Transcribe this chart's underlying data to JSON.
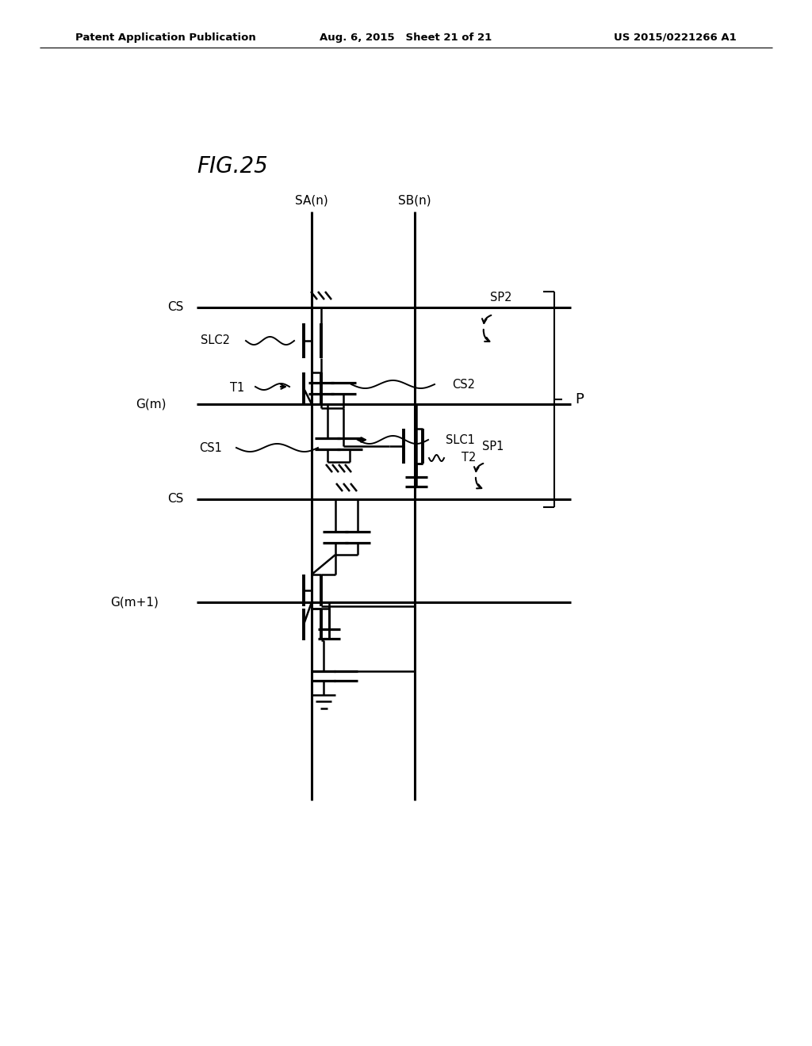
{
  "header_left": "Patent Application Publication",
  "header_mid": "Aug. 6, 2015   Sheet 21 of 21",
  "header_right": "US 2015/0221266 A1",
  "fig_label": "FIG.25",
  "background": "#ffffff",
  "lc": "#000000"
}
